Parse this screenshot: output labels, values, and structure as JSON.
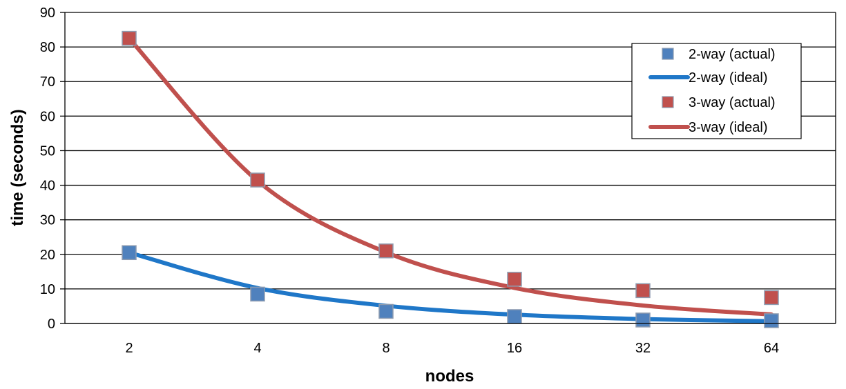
{
  "chart_data": {
    "type": "line",
    "title": "",
    "xlabel": "nodes",
    "ylabel": "time (seconds)",
    "categories": [
      "2",
      "4",
      "8",
      "16",
      "32",
      "64"
    ],
    "ylim": [
      0,
      90
    ],
    "yticks": [
      0,
      10,
      20,
      30,
      40,
      50,
      60,
      70,
      80,
      90
    ],
    "grid": "horizontal",
    "legend_position": "top-right",
    "series": [
      {
        "name": "2-way (actual)",
        "kind": "markers",
        "color": "#4f81bd",
        "values": [
          20.5,
          8.5,
          3.5,
          2.0,
          1.0,
          0.8
        ]
      },
      {
        "name": "2-way (ideal)",
        "kind": "line",
        "color": "#1f77c8",
        "values": [
          20.5,
          10.25,
          5.125,
          2.56,
          1.28,
          0.64
        ]
      },
      {
        "name": "3-way (actual)",
        "kind": "markers",
        "color": "#c0504d",
        "values": [
          82.5,
          41.5,
          21.0,
          12.8,
          9.5,
          7.5
        ]
      },
      {
        "name": "3-way (ideal)",
        "kind": "line",
        "color": "#c0504d",
        "values": [
          82.5,
          41.25,
          20.6,
          10.3,
          5.2,
          2.6
        ]
      }
    ]
  }
}
